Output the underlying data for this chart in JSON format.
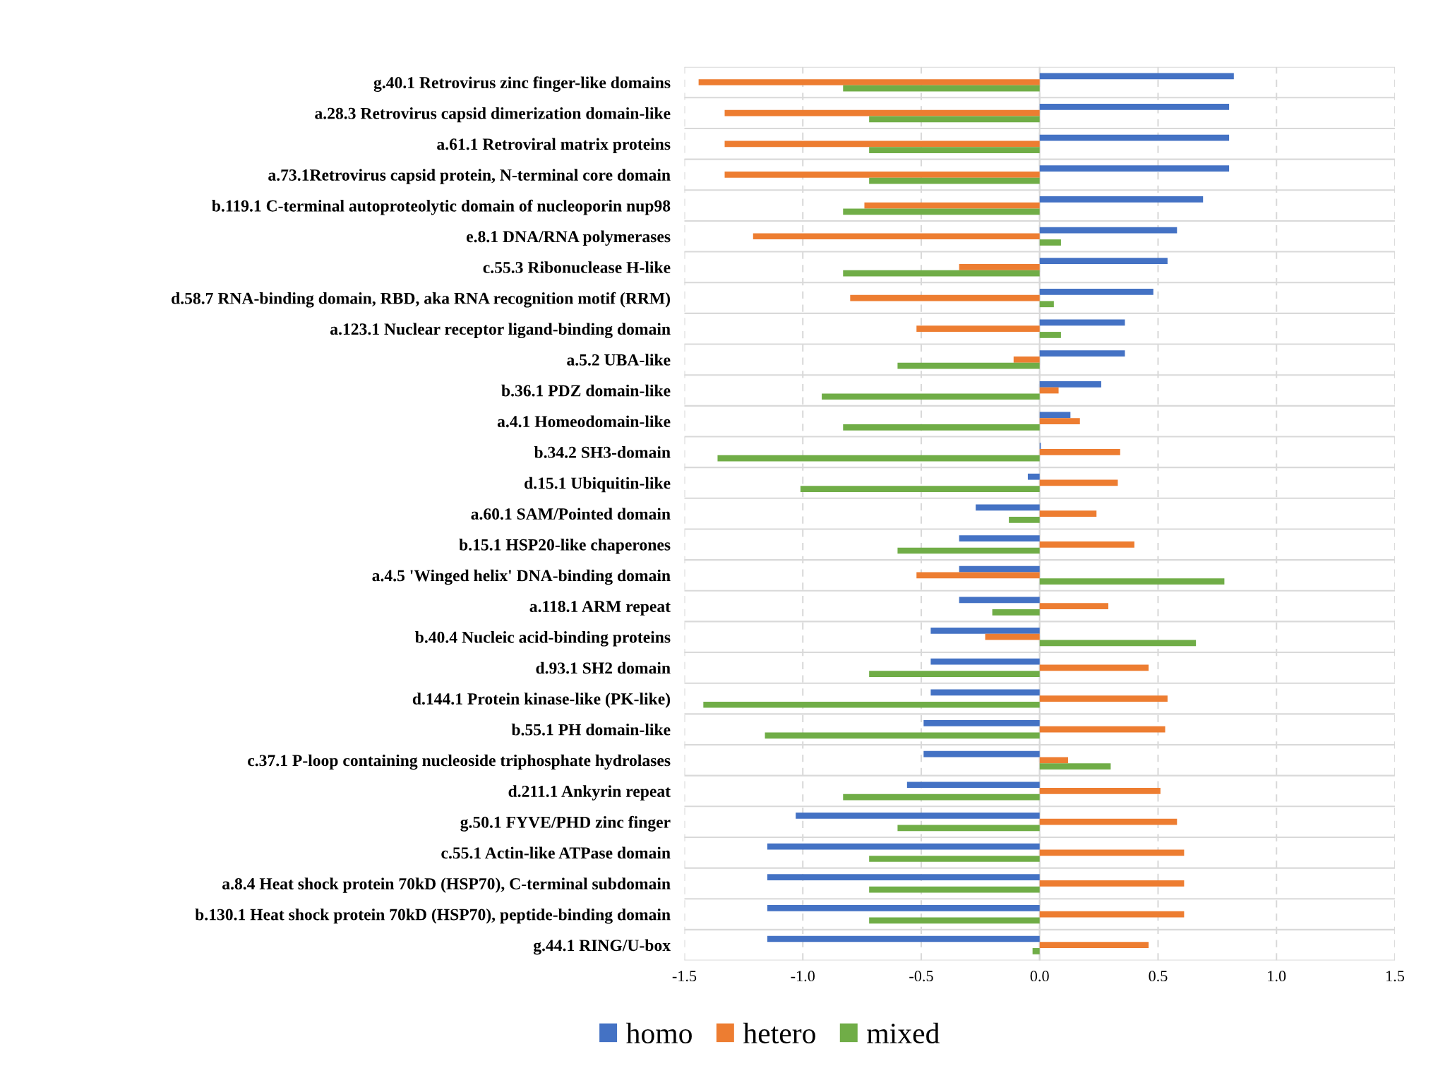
{
  "chart_data": {
    "type": "bar",
    "orientation": "horizontal",
    "categories": [
      "g.40.1 Retrovirus zinc finger-like domains",
      "a.28.3 Retrovirus capsid dimerization domain-like",
      "a.61.1 Retroviral matrix proteins",
      "a.73.1Retrovirus capsid protein, N-terminal core domain",
      "b.119.1 C-terminal autoproteolytic domain of nucleoporin nup98",
      "e.8.1 DNA/RNA polymerases",
      "c.55.3 Ribonuclease H-like",
      "d.58.7 RNA-binding domain, RBD, aka RNA recognition motif (RRM)",
      "a.123.1 Nuclear receptor ligand-binding domain",
      "a.5.2 UBA-like",
      "b.36.1 PDZ domain-like",
      "a.4.1 Homeodomain-like",
      "b.34.2 SH3-domain",
      "d.15.1 Ubiquitin-like",
      "a.60.1 SAM/Pointed domain",
      "b.15.1 HSP20-like chaperones",
      "a.4.5 'Winged helix' DNA-binding domain",
      "a.118.1 ARM repeat",
      "b.40.4 Nucleic acid-binding proteins",
      "d.93.1 SH2 domain",
      "d.144.1 Protein kinase-like (PK-like)",
      "b.55.1 PH domain-like",
      "c.37.1 P-loop containing nucleoside triphosphate hydrolases",
      "d.211.1 Ankyrin repeat",
      "g.50.1 FYVE/PHD zinc finger",
      "c.55.1 Actin-like ATPase domain",
      "a.8.4 Heat shock protein 70kD (HSP70), C-terminal subdomain",
      "b.130.1 Heat shock protein 70kD (HSP70), peptide-binding domain",
      "g.44.1 RING/U-box"
    ],
    "series": [
      {
        "name": "homo",
        "color": "#4472c4",
        "values": [
          0.82,
          0.8,
          0.8,
          0.8,
          0.69,
          0.58,
          0.54,
          0.48,
          0.36,
          0.36,
          0.26,
          0.13,
          0.005,
          -0.05,
          -0.27,
          -0.34,
          -0.34,
          -0.34,
          -0.46,
          -0.46,
          -0.46,
          -0.49,
          -0.49,
          -0.56,
          -1.03,
          -1.15,
          -1.15,
          -1.15,
          -1.15
        ]
      },
      {
        "name": "hetero",
        "color": "#ed7d31",
        "values": [
          -1.44,
          -1.33,
          -1.33,
          -1.33,
          -0.74,
          -1.21,
          -0.34,
          -0.8,
          -0.52,
          -0.11,
          0.08,
          0.17,
          0.34,
          0.33,
          0.24,
          0.4,
          -0.52,
          0.29,
          -0.23,
          0.46,
          0.54,
          0.53,
          0.12,
          0.51,
          0.58,
          0.61,
          0.61,
          0.61,
          0.46
        ]
      },
      {
        "name": "mixed",
        "color": "#70ad47",
        "values": [
          -0.83,
          -0.72,
          -0.72,
          -0.72,
          -0.83,
          0.09,
          -0.83,
          0.06,
          0.09,
          -0.6,
          -0.92,
          -0.83,
          -1.36,
          -1.01,
          -0.13,
          -0.6,
          0.78,
          -0.2,
          0.66,
          -0.72,
          -1.42,
          -1.16,
          0.3,
          -0.83,
          -0.6,
          -0.72,
          -0.72,
          -0.72,
          -0.03
        ]
      }
    ],
    "xlim": [
      -1.5,
      1.5
    ],
    "xticks": [
      {
        "value": -1.5,
        "label": "-1.5"
      },
      {
        "value": -1.0,
        "label": "-1.0"
      },
      {
        "value": -0.5,
        "label": "-0.5"
      },
      {
        "value": 0.0,
        "label": "0.0"
      },
      {
        "value": 0.5,
        "label": "0.5"
      },
      {
        "value": 1.0,
        "label": "1.0"
      },
      {
        "value": 1.5,
        "label": "1.5"
      }
    ],
    "grid": true,
    "legend": "bottom"
  }
}
